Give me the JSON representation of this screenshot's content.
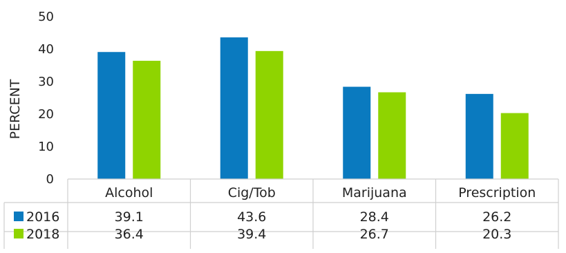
{
  "chart_data": {
    "type": "bar",
    "categories": [
      "Alcohol",
      "Cig/Tob",
      "Marijuana",
      "Prescription"
    ],
    "series": [
      {
        "name": "2016",
        "values": [
          39.1,
          43.6,
          28.4,
          26.2
        ],
        "color": "#0a7abf"
      },
      {
        "name": "2018",
        "values": [
          36.4,
          39.4,
          26.7,
          20.3
        ],
        "color": "#8fd400"
      }
    ],
    "ylabel": "PERCENT",
    "xlabel": "",
    "title": "",
    "ylim": [
      0,
      50
    ],
    "yticks": [
      0,
      10,
      20,
      30,
      40,
      50
    ],
    "grid": false,
    "legend": "data-table"
  }
}
